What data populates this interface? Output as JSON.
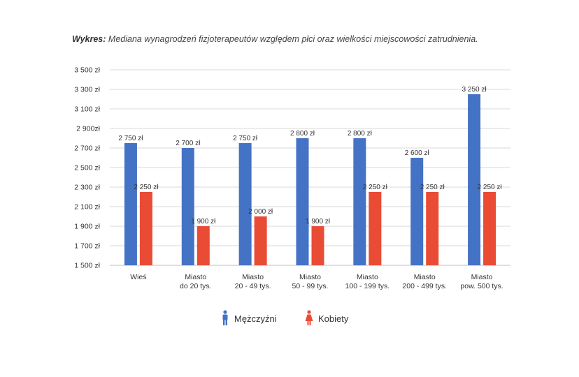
{
  "title": {
    "prefix": "Wykres:",
    "text": "Mediana wynagrodzeń fizjoterapeutów względem płci oraz wielkości miejscowości zatrudnienia."
  },
  "colors": {
    "men": "#4472c4",
    "women": "#ea4b35",
    "grid": "#d9d9d9",
    "axis": "#bfbfbf"
  },
  "chart_data": {
    "type": "bar",
    "title": "Mediana wynagrodzeń fizjoterapeutów względem płci oraz wielkości miejscowości zatrudnienia.",
    "categories": [
      [
        "Wieś"
      ],
      [
        "Miasto",
        "do 20 tys."
      ],
      [
        "Miasto",
        "20 - 49 tys."
      ],
      [
        "Miasto",
        "50 - 99 tys."
      ],
      [
        "Miasto",
        "100 - 199 tys."
      ],
      [
        "Miasto",
        "200 - 499 tys."
      ],
      [
        "Miasto",
        "pow. 500 tys."
      ]
    ],
    "series": [
      {
        "name": "Mężczyźni",
        "values": [
          2750,
          2700,
          2750,
          2800,
          2800,
          2600,
          3250
        ],
        "labels": [
          "2 750 zł",
          "2 700 zł",
          "2 750 zł",
          "2 800 zł",
          "2 800 zł",
          "2 600 zł",
          "3 250 zł"
        ]
      },
      {
        "name": "Kobiety",
        "values": [
          2250,
          1900,
          2000,
          1900,
          2250,
          2250,
          2250
        ],
        "labels": [
          "2 250 zł",
          "1 900 zł",
          "2 000 zł",
          "1 900 zł",
          "2 250 zł",
          "2 250 zł",
          "2 250 zł"
        ]
      }
    ],
    "ylim": [
      1500,
      3500
    ],
    "yticks": [
      3500,
      3300,
      3100,
      2900,
      2700,
      2500,
      2300,
      2100,
      1900,
      1700,
      1500
    ],
    "ytick_labels": [
      "3 500 zł",
      "3 300 zł",
      "3 100 zł",
      "2 900zł",
      "2 700 zł",
      "2 500 zł",
      "2 300 zł",
      "2 100 zł",
      "1 900 zł",
      "1 700 zł",
      "1 500 zł"
    ],
    "xlabel": "",
    "ylabel": "",
    "grid": true,
    "legend": "bottom-center"
  },
  "legend": [
    {
      "label": "Mężczyźni",
      "icon": "man-icon"
    },
    {
      "label": "Kobiety",
      "icon": "woman-icon"
    }
  ]
}
